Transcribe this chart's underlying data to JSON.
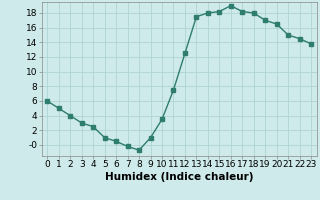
{
  "x": [
    0,
    1,
    2,
    3,
    4,
    5,
    6,
    7,
    8,
    9,
    10,
    11,
    12,
    13,
    14,
    15,
    16,
    17,
    18,
    19,
    20,
    21,
    22,
    23
  ],
  "y": [
    6.0,
    5.0,
    4.0,
    3.0,
    2.5,
    1.0,
    0.5,
    -0.2,
    -0.7,
    1.0,
    3.5,
    7.5,
    12.5,
    17.5,
    18.0,
    18.2,
    19.0,
    18.2,
    18.0,
    17.0,
    16.5,
    15.0,
    14.5,
    13.8
  ],
  "line_color": "#2e7d6e",
  "marker": "s",
  "marker_size": 2.5,
  "bg_color": "#ceeaea",
  "grid_color": "#aed4d4",
  "xlabel": "Humidex (Indice chaleur)",
  "ylim": [
    -1.5,
    19.5
  ],
  "xlim": [
    -0.5,
    23.5
  ],
  "yticks": [
    0,
    2,
    4,
    6,
    8,
    10,
    12,
    14,
    16,
    18
  ],
  "xticks": [
    0,
    1,
    2,
    3,
    4,
    5,
    6,
    7,
    8,
    9,
    10,
    11,
    12,
    13,
    14,
    15,
    16,
    17,
    18,
    19,
    20,
    21,
    22,
    23
  ],
  "xtick_labels": [
    "0",
    "1",
    "2",
    "3",
    "4",
    "5",
    "6",
    "7",
    "8",
    "9",
    "10",
    "11",
    "12",
    "13",
    "14",
    "15",
    "16",
    "17",
    "18",
    "19",
    "20",
    "21",
    "22",
    "23"
  ],
  "ytick_labels": [
    "-0",
    "2",
    "4",
    "6",
    "8",
    "10",
    "12",
    "14",
    "16",
    "18"
  ],
  "xlabel_fontsize": 7.5,
  "tick_fontsize": 6.5,
  "linewidth": 1.0
}
